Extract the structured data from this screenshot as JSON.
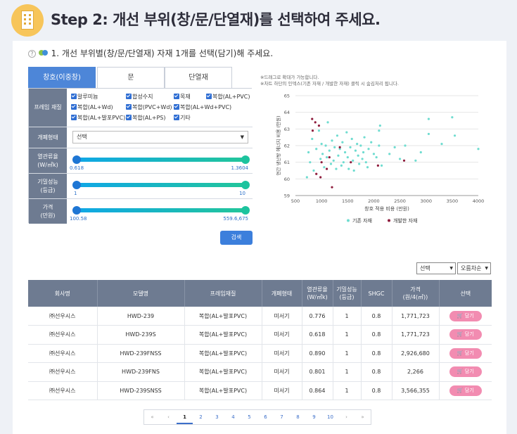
{
  "header": {
    "title": "Step 2: 개선 부위(창/문/단열재)를 선택하여 주세요.",
    "icon": "building-icon"
  },
  "subtitle": {
    "text": "1. 개선 부위별(창/문/단열재) 자재 1개를 선택(담기)해 주세요.",
    "help": "?"
  },
  "tabs": [
    {
      "label": "창호(이중창)",
      "active": true
    },
    {
      "label": "문"
    },
    {
      "label": "단열재"
    }
  ],
  "filters": {
    "frame": {
      "label": "프레임 재질",
      "options": [
        "알루미늄",
        "합성수지",
        "목재",
        "복합(AL+PVC)",
        "복합(AL+Wd)",
        "복합(PVC+Wd)",
        "복합(AL+Wd+PVC)",
        "복합(AL+발포PVC)",
        "복합(AL+PS)",
        "기타"
      ]
    },
    "open_type": {
      "label": "개폐형태",
      "value": "선택"
    },
    "uvalue": {
      "label": "열관류율\n(W/㎡k)",
      "min": "0.618",
      "max": "1.3604"
    },
    "airtight": {
      "label": "기밀성능\n(등급)",
      "min": "1",
      "max": "10"
    },
    "price": {
      "label": "가격\n(만원)",
      "min": "100.58",
      "max": "559.6,675"
    },
    "search_label": "검색"
  },
  "chart_notes": [
    "※드래그로 확대가 가능합니다.",
    "※차트 하단의 인덱스(기존 자재 / 개발한 자재) 클릭 시 숨김처리 됩니다."
  ],
  "colors": {
    "accent": "#4d86d8",
    "existing": "#6fdcd0",
    "developed": "#8e1c3c",
    "add": "#f28cb1",
    "header_row": "#6e7b91"
  },
  "chart_data": {
    "type": "scatter",
    "xlabel": "창호 적용 비용 (만원)",
    "ylabel": "연간 냉난방 에너지 비용 (만원)",
    "xlim": [
      500,
      4000
    ],
    "ylim": [
      59,
      65
    ],
    "xticks": [
      "500",
      "1000",
      "1500",
      "2000",
      "2500",
      "3000",
      "3500",
      "4000"
    ],
    "yticks": [
      "59",
      "60",
      "61",
      "62",
      "63",
      "64",
      "65"
    ],
    "legend_position": "bottom",
    "series": [
      {
        "name": "기존 자재",
        "color": "#6fdcd0",
        "points": [
          [
            720,
            60.1
          ],
          [
            750,
            61.6
          ],
          [
            780,
            61.0
          ],
          [
            820,
            62.4
          ],
          [
            850,
            60.5
          ],
          [
            900,
            61.8
          ],
          [
            950,
            62.9
          ],
          [
            980,
            61.2
          ],
          [
            1000,
            62.1
          ],
          [
            1020,
            61.5
          ],
          [
            1050,
            60.7
          ],
          [
            1080,
            62.0
          ],
          [
            1100,
            61.3
          ],
          [
            1120,
            63.4
          ],
          [
            1150,
            61.7
          ],
          [
            1180,
            60.9
          ],
          [
            1200,
            62.3
          ],
          [
            1230,
            61.1
          ],
          [
            1250,
            61.9
          ],
          [
            1280,
            60.6
          ],
          [
            1300,
            62.6
          ],
          [
            1320,
            61.4
          ],
          [
            1350,
            61.8
          ],
          [
            1380,
            60.8
          ],
          [
            1400,
            62.2
          ],
          [
            1420,
            61.0
          ],
          [
            1450,
            61.6
          ],
          [
            1480,
            62.8
          ],
          [
            1500,
            61.3
          ],
          [
            1520,
            60.6
          ],
          [
            1550,
            61.9
          ],
          [
            1580,
            62.4
          ],
          [
            1600,
            61.1
          ],
          [
            1620,
            60.5
          ],
          [
            1650,
            61.7
          ],
          [
            1680,
            62.1
          ],
          [
            1700,
            61.4
          ],
          [
            1720,
            60.9
          ],
          [
            1750,
            62.0
          ],
          [
            1780,
            61.2
          ],
          [
            1800,
            61.6
          ],
          [
            1820,
            62.5
          ],
          [
            1850,
            61.0
          ],
          [
            1880,
            60.7
          ],
          [
            1900,
            61.8
          ],
          [
            1950,
            62.2
          ],
          [
            2000,
            61.5
          ],
          [
            2050,
            61.3
          ],
          [
            2100,
            62.0
          ],
          [
            2100,
            62.9
          ],
          [
            2120,
            63.2
          ],
          [
            2150,
            60.8
          ],
          [
            2300,
            61.5
          ],
          [
            2400,
            61.9
          ],
          [
            2500,
            61.2
          ],
          [
            2600,
            62.0
          ],
          [
            2800,
            61.1
          ],
          [
            2900,
            61.6
          ],
          [
            3050,
            63.6
          ],
          [
            3050,
            62.7
          ],
          [
            3300,
            62.1
          ],
          [
            3500,
            63.7
          ],
          [
            3550,
            62.6
          ],
          [
            4000,
            61.8
          ]
        ]
      },
      {
        "name": "개발한 자재",
        "color": "#8e1c3c",
        "points": [
          [
            820,
            63.6
          ],
          [
            880,
            63.4
          ],
          [
            950,
            63.2
          ],
          [
            830,
            62.9
          ],
          [
            900,
            60.3
          ],
          [
            980,
            60.1
          ],
          [
            1000,
            61.0
          ],
          [
            1100,
            60.6
          ],
          [
            1150,
            61.3
          ],
          [
            1200,
            59.5
          ],
          [
            1350,
            61.9
          ],
          [
            1560,
            61.0
          ],
          [
            2080,
            60.8
          ],
          [
            2580,
            61.1
          ]
        ]
      }
    ]
  },
  "sort": {
    "field": "선택",
    "order": "오름차순"
  },
  "table": {
    "headers": [
      "회사명",
      "모델명",
      "프레임재질",
      "개폐형태",
      "열관류율\n(W/㎡k)",
      "기밀성능\n(등급)",
      "SHGC",
      "가격\n(원/4(㎡))",
      "선택"
    ],
    "add_label": "담기",
    "rows": [
      [
        "㈜선우시스",
        "HWD-239",
        "복합(AL+발포PVC)",
        "미서기",
        "0.776",
        "1",
        "0.8",
        "1,771,723"
      ],
      [
        "㈜선우시스",
        "HWD-239S",
        "복합(AL+발포PVC)",
        "미서기",
        "0.618",
        "1",
        "0.8",
        "1,771,723"
      ],
      [
        "㈜선우시스",
        "HWD-239FNSS",
        "복합(AL+발포PVC)",
        "미서기",
        "0.890",
        "1",
        "0.8",
        "2,926,680"
      ],
      [
        "㈜선우시스",
        "HWD-239FNS",
        "복합(AL+발포PVC)",
        "미서기",
        "0.801",
        "1",
        "0.8",
        "2,266"
      ],
      [
        "㈜선우시스",
        "HWD-239SNSS",
        "복합(AL+발포PVC)",
        "미서기",
        "0.864",
        "1",
        "0.8",
        "3,566,355"
      ]
    ]
  },
  "pagination": {
    "first": "«",
    "prev": "‹",
    "pages": [
      "1",
      "2",
      "3",
      "4",
      "5",
      "6",
      "7",
      "8",
      "9",
      "10"
    ],
    "current": "1",
    "next": "›",
    "last": "»"
  }
}
